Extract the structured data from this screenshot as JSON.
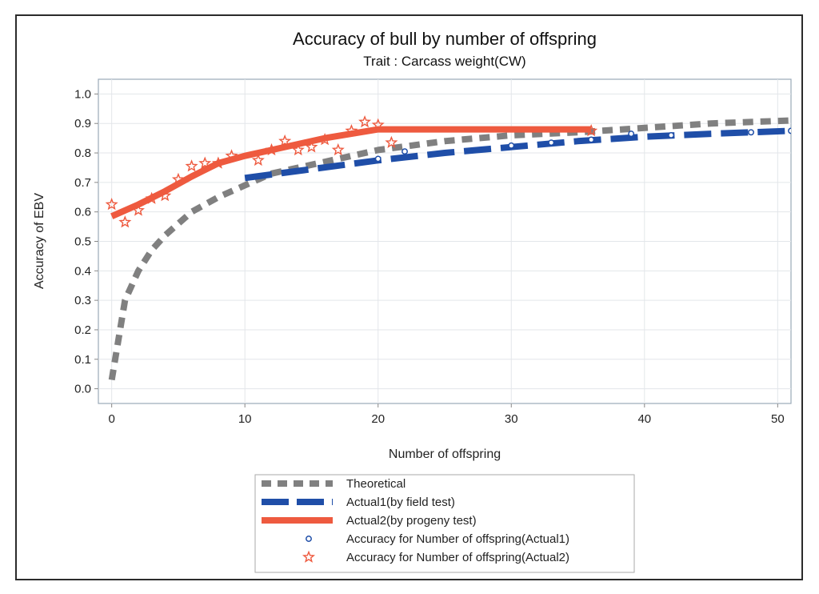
{
  "chart_data": {
    "type": "line",
    "title": "Accuracy of bull by number of offspring",
    "subtitle": "Trait : Carcass weight(CW)",
    "xlabel": "Number of offspring",
    "ylabel": "Accuracy of EBV",
    "xlim": [
      -1,
      51
    ],
    "ylim": [
      -0.05,
      1.05
    ],
    "xticks": [
      0,
      10,
      20,
      30,
      40,
      50
    ],
    "yticks": [
      0.0,
      0.1,
      0.2,
      0.3,
      0.4,
      0.5,
      0.6,
      0.7,
      0.8,
      0.9,
      1.0
    ],
    "grid": true,
    "legend_position": "bottom",
    "series": [
      {
        "name": "Theoretical",
        "style": "short-dash",
        "color": "#808080",
        "x": [
          0,
          1,
          2,
          3,
          4,
          5,
          6,
          8,
          10,
          12,
          15,
          20,
          25,
          30,
          35,
          40,
          45,
          51
        ],
        "y": [
          0.03,
          0.3,
          0.4,
          0.47,
          0.52,
          0.56,
          0.6,
          0.65,
          0.69,
          0.73,
          0.76,
          0.81,
          0.84,
          0.86,
          0.87,
          0.885,
          0.9,
          0.91
        ]
      },
      {
        "name": "Actual1(by field test)",
        "style": "long-dash",
        "color": "#1f4ea8",
        "x": [
          10,
          15,
          20,
          25,
          30,
          35,
          40,
          45,
          51
        ],
        "y": [
          0.715,
          0.745,
          0.775,
          0.8,
          0.82,
          0.84,
          0.855,
          0.865,
          0.875
        ]
      },
      {
        "name": "Actual2(by progeny test)",
        "style": "solid",
        "color": "#ee5a3f",
        "x": [
          0,
          2,
          4,
          6,
          8,
          10,
          12,
          14,
          16,
          18,
          20,
          25,
          30,
          36
        ],
        "y": [
          0.585,
          0.625,
          0.67,
          0.72,
          0.765,
          0.79,
          0.81,
          0.83,
          0.85,
          0.865,
          0.88,
          0.88,
          0.88,
          0.88
        ]
      },
      {
        "name": "Accuracy for Number of offspring(Actual1)",
        "style": "circle-markers",
        "color": "#1f4ea8",
        "x": [
          20,
          22,
          30,
          33,
          36,
          39,
          42,
          48,
          51
        ],
        "y": [
          0.78,
          0.805,
          0.825,
          0.835,
          0.845,
          0.865,
          0.86,
          0.87,
          0.875
        ]
      },
      {
        "name": "Accuracy for Number of offspring(Actual2)",
        "style": "star-markers",
        "color": "#ee5a3f",
        "x": [
          0,
          1,
          2,
          3,
          4,
          5,
          6,
          7,
          8,
          9,
          11,
          12,
          13,
          14,
          15,
          16,
          17,
          18,
          19,
          20,
          21,
          36
        ],
        "y": [
          0.625,
          0.565,
          0.605,
          0.645,
          0.655,
          0.71,
          0.755,
          0.765,
          0.765,
          0.79,
          0.775,
          0.81,
          0.84,
          0.81,
          0.82,
          0.845,
          0.81,
          0.875,
          0.905,
          0.895,
          0.835,
          0.875
        ]
      }
    ]
  }
}
